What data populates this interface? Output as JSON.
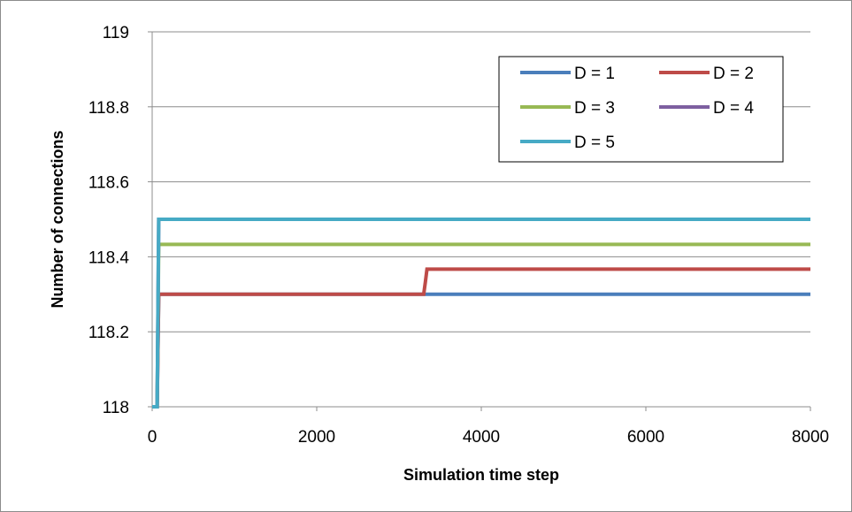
{
  "chart_data": {
    "type": "line",
    "xlabel": "Simulation time step",
    "ylabel": "Number of connections",
    "xlim": [
      0,
      8000
    ],
    "ylim": [
      118,
      119
    ],
    "xticks": [
      "0",
      "2000",
      "4000",
      "6000",
      "8000"
    ],
    "yticks": [
      "118",
      "118.2",
      "118.4",
      "118.6",
      "118.8",
      "119"
    ],
    "grid": "horizontal",
    "legend_position": "top-right",
    "series": [
      {
        "name": "D = 1",
        "color": "#4a7ebb",
        "points": [
          [
            0,
            118
          ],
          [
            60,
            118
          ],
          [
            80,
            118.3
          ],
          [
            8000,
            118.3
          ]
        ]
      },
      {
        "name": "D = 2",
        "color": "#be4b48",
        "points": [
          [
            0,
            118
          ],
          [
            60,
            118
          ],
          [
            80,
            118.3
          ],
          [
            3300,
            118.3
          ],
          [
            3320,
            118.333
          ],
          [
            3340,
            118.367
          ],
          [
            8000,
            118.367
          ]
        ]
      },
      {
        "name": "D = 3",
        "color": "#98b954",
        "points": [
          [
            0,
            118
          ],
          [
            60,
            118
          ],
          [
            80,
            118.433
          ],
          [
            8000,
            118.433
          ]
        ]
      },
      {
        "name": "D = 4",
        "color": "#7d5fa0",
        "points": [
          [
            0,
            118
          ],
          [
            60,
            118
          ],
          [
            80,
            118.5
          ],
          [
            8000,
            118.5
          ]
        ]
      },
      {
        "name": "D = 5",
        "color": "#46aac5",
        "points": [
          [
            0,
            118
          ],
          [
            60,
            118
          ],
          [
            80,
            118.5
          ],
          [
            8000,
            118.5
          ]
        ]
      }
    ]
  }
}
